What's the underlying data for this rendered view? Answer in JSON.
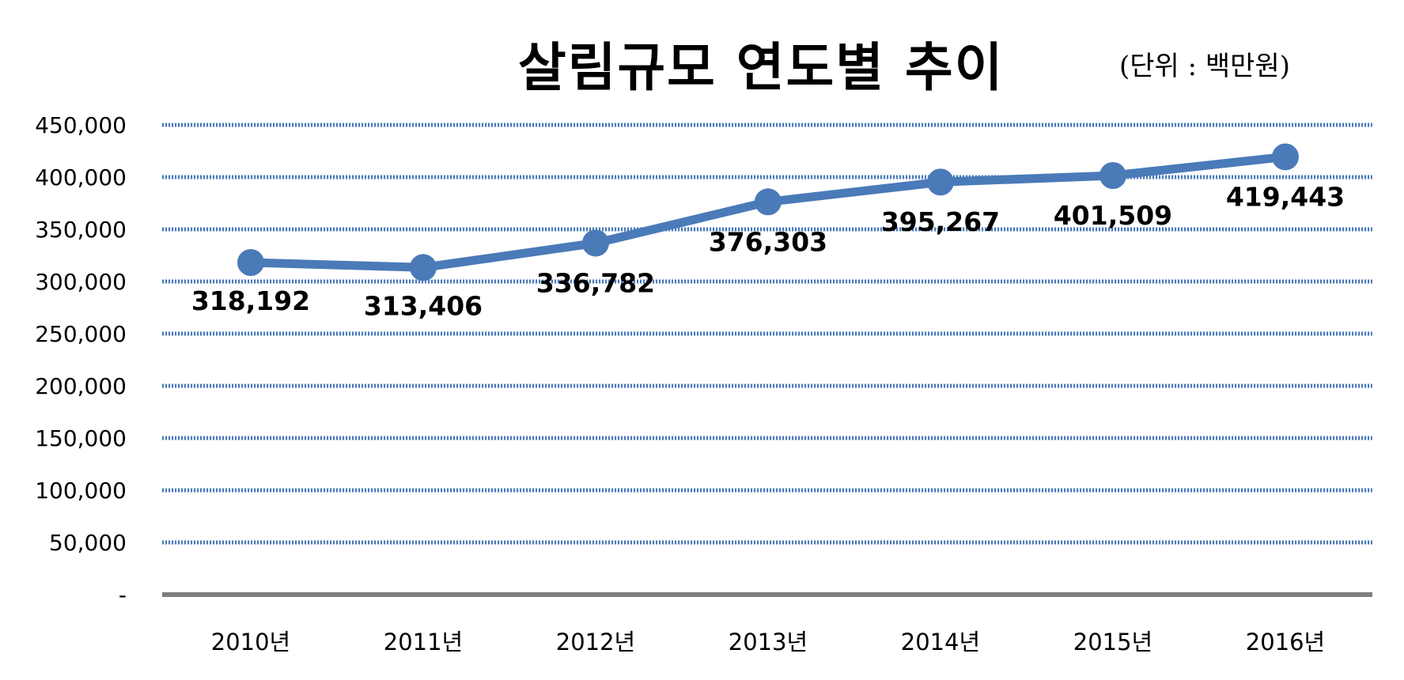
{
  "chart_data": {
    "type": "line",
    "title": "살림규모 연도별 추이",
    "unit_note": "(단위 : 백만원)",
    "xlabel": "",
    "ylabel": "",
    "categories": [
      "2010년",
      "2011년",
      "2012년",
      "2013년",
      "2014년",
      "2015년",
      "2016년"
    ],
    "series": [
      {
        "values": [
          318192,
          313406,
          336782,
          376303,
          395267,
          401509,
          419443
        ],
        "data_labels": [
          "318,192",
          "313,406",
          "336,782",
          "376,303",
          "395,267",
          "401,509",
          "419,443"
        ],
        "color": "#4a7ab8"
      }
    ],
    "ylim": [
      0,
      450000
    ],
    "yticks": [
      0,
      50000,
      100000,
      150000,
      200000,
      250000,
      300000,
      350000,
      400000,
      450000
    ],
    "ytick_labels": [
      "-",
      "50,000",
      "100,000",
      "150,000",
      "200,000",
      "250,000",
      "300,000",
      "350,000",
      "400,000",
      "450,000"
    ],
    "grid": true,
    "grid_style": "dotted",
    "grid_color": "#4a7ab8",
    "axis_color": "#7f7f7f",
    "legend": "none"
  }
}
